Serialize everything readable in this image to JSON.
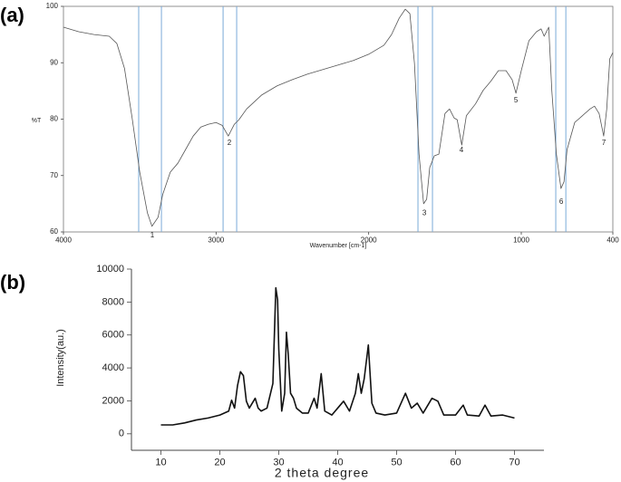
{
  "chart_data": [
    {
      "type": "line",
      "panel_label": "(a)",
      "x_label": "Wavenumber [cm-1]",
      "y_label": "%T",
      "xlim": [
        4000,
        400
      ],
      "xticks": [
        4000,
        3000,
        2000,
        1000,
        400
      ],
      "ylim": [
        60,
        100
      ],
      "yticks": [
        60,
        70,
        80,
        90,
        100
      ],
      "x": [
        4000,
        3900,
        3800,
        3700,
        3650,
        3600,
        3550,
        3500,
        3450,
        3420,
        3380,
        3350,
        3300,
        3250,
        3200,
        3150,
        3100,
        3050,
        3000,
        2960,
        2920,
        2880,
        2850,
        2800,
        2700,
        2600,
        2500,
        2400,
        2300,
        2200,
        2100,
        2000,
        1900,
        1850,
        1800,
        1760,
        1730,
        1700,
        1670,
        1640,
        1620,
        1600,
        1570,
        1540,
        1500,
        1470,
        1440,
        1420,
        1390,
        1360,
        1300,
        1250,
        1200,
        1150,
        1100,
        1060,
        1035,
        1000,
        950,
        900,
        870,
        850,
        820,
        800,
        770,
        740,
        720,
        700,
        650,
        600,
        550,
        520,
        490,
        460,
        440,
        420,
        400
      ],
      "series": [
        {
          "color": "#555555",
          "values": [
            96.3,
            95.5,
            95,
            94.7,
            93.4,
            89,
            80.2,
            70.6,
            63.4,
            61,
            62.6,
            66.6,
            70.6,
            72.2,
            74.6,
            77,
            78.6,
            79.1,
            79.4,
            78.9,
            77,
            79.1,
            79.9,
            81.8,
            84.3,
            85.9,
            87,
            88,
            88.8,
            89.6,
            90.4,
            91.5,
            93.1,
            95,
            97.9,
            99.5,
            98.7,
            89.9,
            73.8,
            65,
            65.8,
            71.4,
            73.5,
            73.8,
            81,
            81.8,
            80.2,
            79.9,
            75.4,
            80.6,
            82.7,
            85.1,
            86.7,
            88.6,
            88.6,
            87,
            84.6,
            88.6,
            93.9,
            95.5,
            96,
            94.7,
            96.3,
            85.1,
            73.8,
            67.7,
            68.9,
            74.6,
            79.4,
            80.6,
            81.8,
            82.3,
            81,
            77,
            81.8,
            90.7,
            91.8
          ]
        }
      ],
      "reference_lines": [
        3507,
        3358,
        2954,
        2865,
        1677,
        1582,
        774,
        708
      ],
      "reference_color": "#7aaad8",
      "annotations": [
        {
          "text": "1",
          "x": 3418,
          "y": 59.4
        },
        {
          "text": "2",
          "x": 2913,
          "y": 75.8
        },
        {
          "text": "3",
          "x": 1635,
          "y": 63.3
        },
        {
          "text": "4",
          "x": 1392,
          "y": 74.5
        },
        {
          "text": "5",
          "x": 1035,
          "y": 83.3
        },
        {
          "text": "6",
          "x": 738,
          "y": 65.3
        },
        {
          "text": "7",
          "x": 459,
          "y": 75.8
        }
      ]
    },
    {
      "type": "line",
      "panel_label": "(b)",
      "x_label": "2 theta degree",
      "y_label": "Intensity(au.)",
      "xlim": [
        5,
        75
      ],
      "xticks": [
        10,
        20,
        30,
        40,
        50,
        60,
        70
      ],
      "ylim": [
        -1000,
        10000
      ],
      "yticks": [
        0,
        2000,
        4000,
        6000,
        8000,
        10000
      ],
      "x": [
        10,
        12,
        14,
        16,
        18,
        20,
        21.5,
        22,
        22.5,
        23,
        23.5,
        24,
        24.5,
        25,
        26,
        26.5,
        27,
        28,
        29,
        29.5,
        29.8,
        30,
        30.5,
        31,
        31.3,
        31.6,
        32,
        32.5,
        33,
        34,
        35,
        36,
        36.5,
        37.2,
        37.8,
        39,
        40,
        41,
        42,
        43,
        43.5,
        44,
        44.5,
        45.2,
        45.8,
        46.5,
        48,
        50,
        51.5,
        52.5,
        53.5,
        54.5,
        56,
        57,
        58,
        60,
        61.3,
        62,
        64,
        65,
        66,
        68,
        70
      ],
      "series": [
        {
          "color": "#111111",
          "values": [
            540,
            540,
            660,
            840,
            960,
            1140,
            1380,
            2040,
            1560,
            2930,
            3770,
            3530,
            1980,
            1560,
            2160,
            1560,
            1380,
            1560,
            3050,
            8860,
            8140,
            5150,
            1380,
            2460,
            6170,
            4850,
            2460,
            2160,
            1560,
            1260,
            1260,
            2160,
            1560,
            3650,
            1380,
            1140,
            1560,
            1980,
            1380,
            2460,
            3650,
            2460,
            3350,
            5390,
            1860,
            1260,
            1140,
            1260,
            2460,
            1560,
            1860,
            1260,
            2160,
            1980,
            1140,
            1140,
            1740,
            1140,
            1080,
            1740,
            1080,
            1140,
            960
          ]
        }
      ]
    }
  ]
}
